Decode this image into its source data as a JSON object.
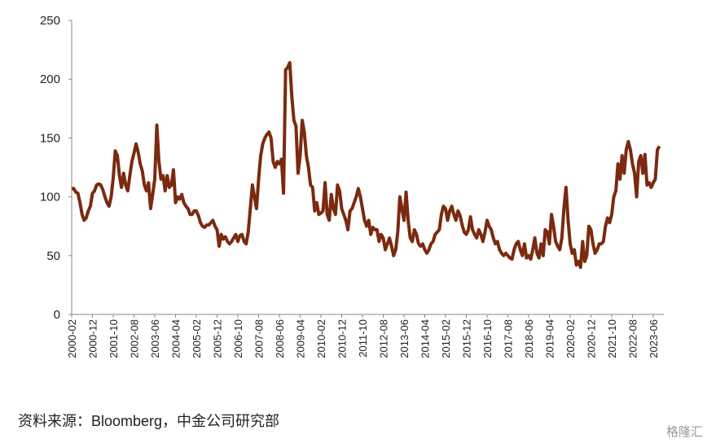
{
  "chart_data": {
    "type": "line",
    "source": "资料来源：Bloomberg，中金公司研究部",
    "watermark": "格隆汇",
    "x": [
      "2000-02",
      "2000-03",
      "2000-04",
      "2000-05",
      "2000-06",
      "2000-07",
      "2000-08",
      "2000-09",
      "2000-10",
      "2000-11",
      "2000-12",
      "2001-01",
      "2001-02",
      "2001-03",
      "2001-04",
      "2001-05",
      "2001-06",
      "2001-07",
      "2001-08",
      "2001-09",
      "2001-10",
      "2001-11",
      "2001-12",
      "2002-01",
      "2002-02",
      "2002-03",
      "2002-04",
      "2002-05",
      "2002-06",
      "2002-07",
      "2002-08",
      "2002-09",
      "2002-10",
      "2002-11",
      "2002-12",
      "2003-01",
      "2003-02",
      "2003-03",
      "2003-04",
      "2003-05",
      "2003-06",
      "2003-07",
      "2003-08",
      "2003-09",
      "2003-10",
      "2003-11",
      "2003-12",
      "2004-01",
      "2004-02",
      "2004-03",
      "2004-04",
      "2004-05",
      "2004-06",
      "2004-07",
      "2004-08",
      "2004-09",
      "2004-10",
      "2004-11",
      "2004-12",
      "2005-01",
      "2005-02",
      "2005-03",
      "2005-04",
      "2005-05",
      "2005-06",
      "2005-07",
      "2005-08",
      "2005-09",
      "2005-10",
      "2005-11",
      "2005-12",
      "2006-01",
      "2006-02",
      "2006-03",
      "2006-04",
      "2006-05",
      "2006-06",
      "2006-07",
      "2006-08",
      "2006-09",
      "2006-10",
      "2006-11",
      "2006-12",
      "2007-01",
      "2007-02",
      "2007-03",
      "2007-04",
      "2007-05",
      "2007-06",
      "2007-07",
      "2007-08",
      "2007-09",
      "2007-10",
      "2007-11",
      "2007-12",
      "2008-01",
      "2008-02",
      "2008-03",
      "2008-04",
      "2008-05",
      "2008-06",
      "2008-07",
      "2008-08",
      "2008-09",
      "2008-10",
      "2008-11",
      "2008-12",
      "2009-01",
      "2009-02",
      "2009-03",
      "2009-04",
      "2009-05",
      "2009-06",
      "2009-07",
      "2009-08",
      "2009-09",
      "2009-10",
      "2009-11",
      "2009-12",
      "2010-01",
      "2010-02",
      "2010-03",
      "2010-04",
      "2010-05",
      "2010-06",
      "2010-07",
      "2010-08",
      "2010-09",
      "2010-10",
      "2010-11",
      "2010-12",
      "2011-01",
      "2011-02",
      "2011-03",
      "2011-04",
      "2011-05",
      "2011-06",
      "2011-07",
      "2011-08",
      "2011-09",
      "2011-10",
      "2011-11",
      "2011-12",
      "2012-01",
      "2012-02",
      "2012-03",
      "2012-04",
      "2012-05",
      "2012-06",
      "2012-07",
      "2012-08",
      "2012-09",
      "2012-10",
      "2012-11",
      "2012-12",
      "2013-01",
      "2013-02",
      "2013-03",
      "2013-04",
      "2013-05",
      "2013-06",
      "2013-07",
      "2013-08",
      "2013-09",
      "2013-10",
      "2013-11",
      "2013-12",
      "2014-01",
      "2014-02",
      "2014-03",
      "2014-04",
      "2014-05",
      "2014-06",
      "2014-07",
      "2014-08",
      "2014-09",
      "2014-10",
      "2014-11",
      "2014-12",
      "2015-01",
      "2015-02",
      "2015-03",
      "2015-04",
      "2015-05",
      "2015-06",
      "2015-07",
      "2015-08",
      "2015-09",
      "2015-10",
      "2015-11",
      "2015-12",
      "2016-01",
      "2016-02",
      "2016-03",
      "2016-04",
      "2016-05",
      "2016-06",
      "2016-07",
      "2016-08",
      "2016-09",
      "2016-10",
      "2016-11",
      "2016-12",
      "2017-01",
      "2017-02",
      "2017-03",
      "2017-04",
      "2017-05",
      "2017-06",
      "2017-07",
      "2017-08",
      "2017-09",
      "2017-10",
      "2017-11",
      "2017-12",
      "2018-01",
      "2018-02",
      "2018-03",
      "2018-04",
      "2018-05",
      "2018-06",
      "2018-07",
      "2018-08",
      "2018-09",
      "2018-10",
      "2018-11",
      "2018-12",
      "2019-01",
      "2019-02",
      "2019-03",
      "2019-04",
      "2019-05",
      "2019-06",
      "2019-07",
      "2019-08",
      "2019-09",
      "2019-10",
      "2019-11",
      "2019-12",
      "2020-01",
      "2020-02",
      "2020-03",
      "2020-04",
      "2020-05",
      "2020-06",
      "2020-07",
      "2020-08",
      "2020-09",
      "2020-10",
      "2020-11",
      "2020-12",
      "2021-01",
      "2021-02",
      "2021-03",
      "2021-04",
      "2021-05",
      "2021-06",
      "2021-07",
      "2021-08",
      "2021-09",
      "2021-10",
      "2021-11",
      "2021-12",
      "2022-01",
      "2022-02",
      "2022-03",
      "2022-04",
      "2022-05",
      "2022-06",
      "2022-07",
      "2022-08",
      "2022-09",
      "2022-10",
      "2022-11",
      "2022-12",
      "2023-01",
      "2023-02",
      "2023-03",
      "2023-04",
      "2023-05",
      "2023-06",
      "2023-07",
      "2023-08",
      "2023-09"
    ],
    "values": [
      107,
      107,
      104,
      103,
      95,
      85,
      80,
      82,
      88,
      92,
      103,
      105,
      110,
      111,
      110,
      106,
      100,
      95,
      92,
      100,
      116,
      139,
      135,
      118,
      108,
      120,
      110,
      105,
      118,
      130,
      137,
      145,
      138,
      128,
      122,
      110,
      105,
      112,
      90,
      102,
      115,
      161,
      130,
      115,
      118,
      105,
      118,
      108,
      110,
      123,
      95,
      100,
      98,
      102,
      95,
      92,
      90,
      85,
      85,
      88,
      88,
      84,
      78,
      75,
      74,
      76,
      76,
      78,
      80,
      75,
      72,
      58,
      68,
      64,
      66,
      62,
      60,
      62,
      65,
      68,
      62,
      67,
      68,
      62,
      60,
      70,
      90,
      110,
      100,
      90,
      115,
      135,
      145,
      150,
      153,
      155,
      150,
      130,
      125,
      130,
      128,
      132,
      103,
      208,
      210,
      214,
      185,
      165,
      160,
      120,
      135,
      165,
      155,
      135,
      125,
      110,
      108,
      88,
      95,
      85,
      86,
      88,
      112,
      85,
      80,
      102,
      90,
      85,
      110,
      105,
      90,
      85,
      80,
      72,
      88,
      90,
      95,
      100,
      107,
      100,
      90,
      80,
      75,
      80,
      68,
      74,
      72,
      72,
      62,
      68,
      65,
      55,
      60,
      65,
      58,
      50,
      55,
      70,
      100,
      90,
      80,
      104,
      80,
      65,
      62,
      72,
      68,
      60,
      58,
      60,
      55,
      52,
      55,
      60,
      62,
      68,
      70,
      72,
      85,
      92,
      90,
      80,
      88,
      92,
      85,
      80,
      88,
      84,
      76,
      70,
      68,
      72,
      83,
      72,
      68,
      65,
      72,
      68,
      62,
      70,
      80,
      75,
      72,
      65,
      60,
      62,
      55,
      52,
      50,
      52,
      50,
      48,
      47,
      55,
      60,
      62,
      55,
      50,
      60,
      48,
      50,
      47,
      55,
      65,
      52,
      48,
      60,
      50,
      72,
      70,
      60,
      85,
      75,
      62,
      58,
      55,
      65,
      90,
      108,
      80,
      60,
      52,
      55,
      42,
      45,
      40,
      62,
      45,
      50,
      75,
      72,
      60,
      52,
      55,
      60,
      60,
      62,
      75,
      82,
      78,
      85,
      100,
      105,
      128,
      115,
      135,
      120,
      140,
      147,
      140,
      128,
      120,
      100,
      130,
      135,
      120,
      136,
      110,
      112,
      108,
      112,
      115,
      140,
      143
    ],
    "color": "#7a2a0f",
    "ylim": [
      0,
      250
    ],
    "yticks": [
      0,
      50,
      100,
      150,
      200,
      250
    ],
    "grid": false
  }
}
